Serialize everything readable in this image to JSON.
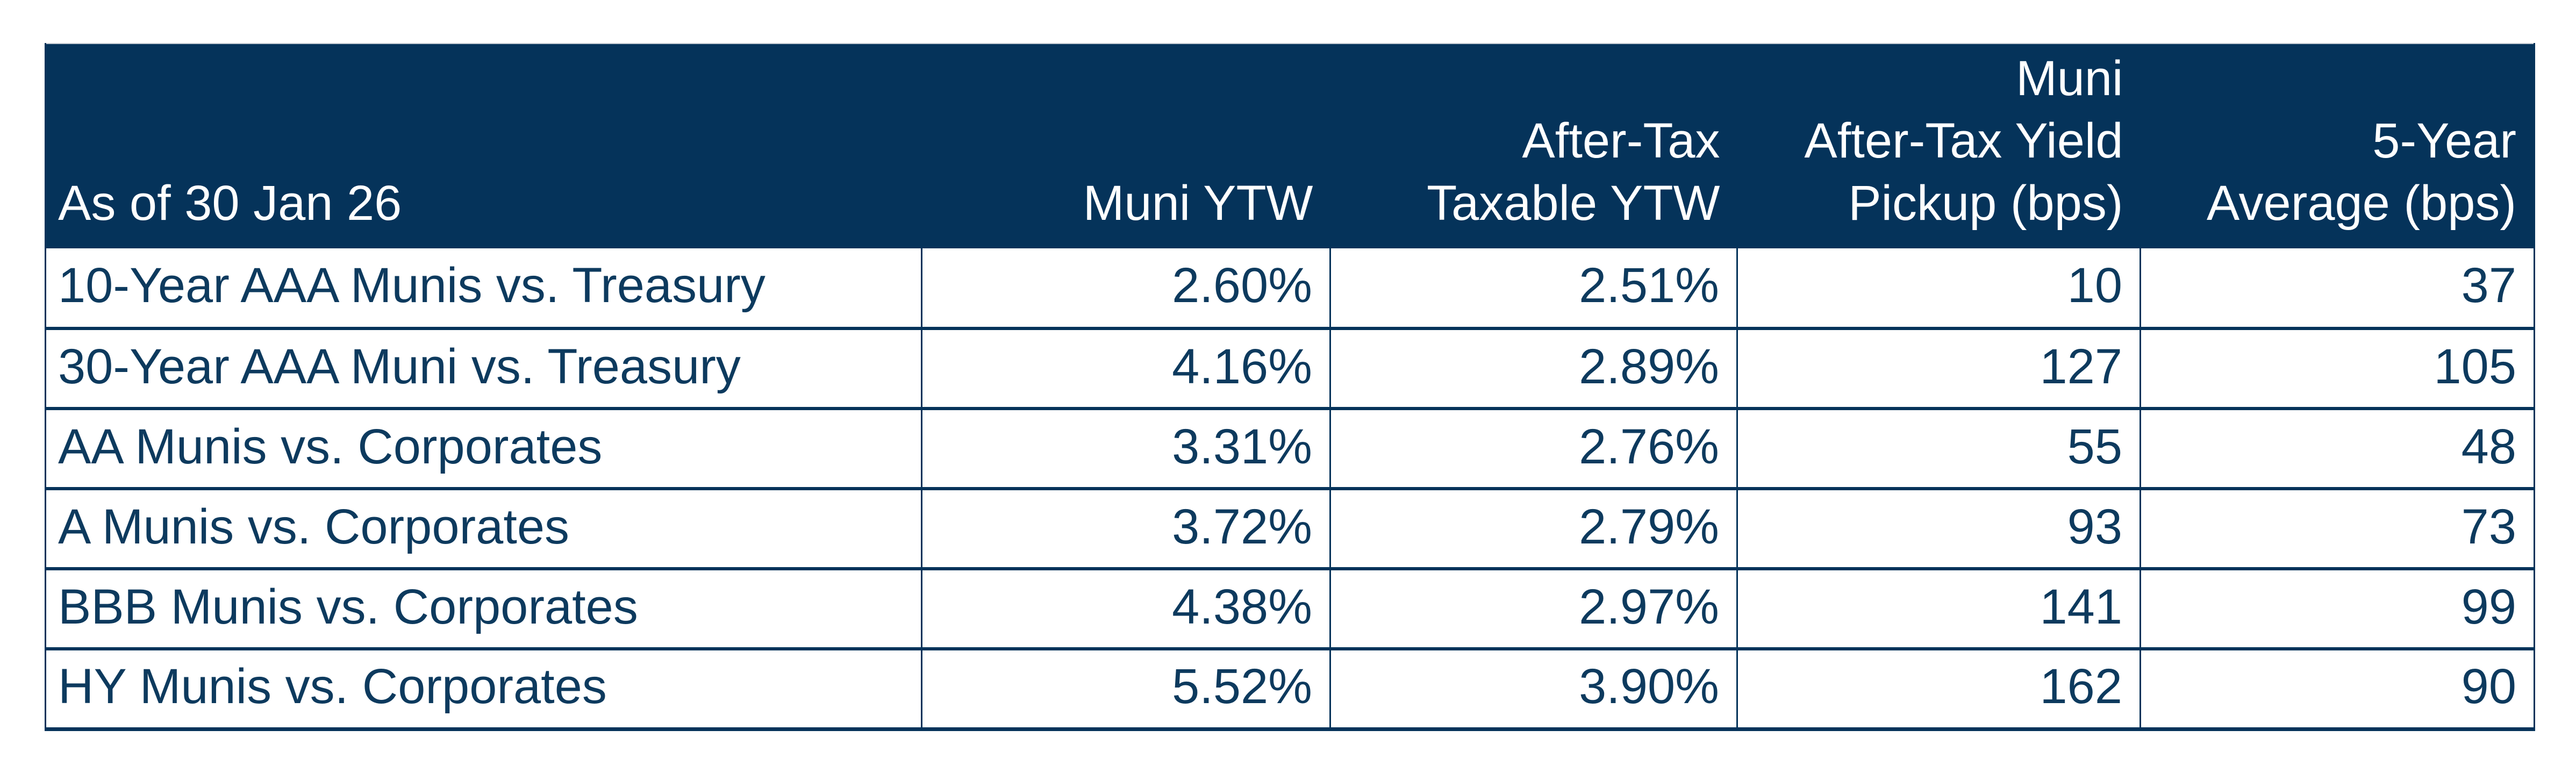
{
  "header_labels": [
    "As of 30 Jan 26",
    "Muni YTW",
    "After-Tax\nTaxable YTW",
    "Muni\nAfter-Tax Yield\nPickup (bps)",
    "5-Year\nAverage (bps)"
  ],
  "chart_data": {
    "type": "table",
    "columns": [
      "As of 30 Jan 26",
      "Muni YTW",
      "After-Tax Taxable YTW",
      "Muni After-Tax Yield Pickup (bps)",
      "5-Year Average (bps)"
    ],
    "rows": [
      [
        "10-Year AAA Munis vs. Treasury",
        "2.60%",
        "2.51%",
        10,
        37
      ],
      [
        "30-Year AAA Muni vs. Treasury",
        "4.16%",
        "2.89%",
        127,
        105
      ],
      [
        "AA Munis vs. Corporates",
        "3.31%",
        "2.76%",
        55,
        48
      ],
      [
        "A Munis vs. Corporates",
        "3.72%",
        "2.79%",
        93,
        73
      ],
      [
        "BBB Munis vs. Corporates",
        "4.38%",
        "2.97%",
        141,
        99
      ],
      [
        "HY Munis vs. Corporates",
        "5.52%",
        "3.90%",
        162,
        90
      ]
    ]
  },
  "colors": {
    "header_background": "#05335A",
    "border": "#05335A",
    "cell_text": "#0D3A5E",
    "header_text": "#FFFFFF",
    "page_background": "#FFFFFF"
  }
}
